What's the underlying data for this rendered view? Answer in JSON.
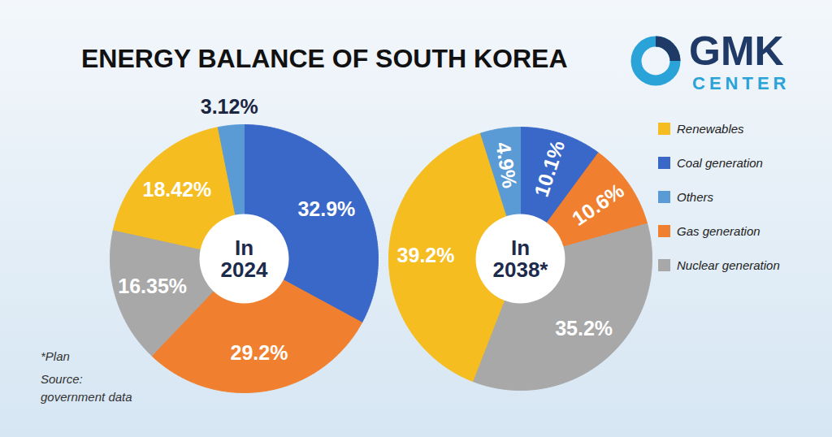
{
  "title": "ENERGY BALANCE OF SOUTH KOREA",
  "logo": [
    "GMK",
    "CENTER"
  ],
  "note": "*Plan",
  "source": [
    "Source:",
    "government data"
  ],
  "legend": "right",
  "legend_labels": [
    "Renewables",
    "Coal generation",
    "Others",
    "Gas generation",
    "Nuclear generation"
  ],
  "chart_data": [
    {
      "type": "pie",
      "title": "In 2024",
      "categories": [
        "Coal generation",
        "Gas generation",
        "Nuclear generation",
        "Renewables",
        "Others"
      ],
      "values": [
        32.9,
        29.2,
        16.35,
        18.42,
        3.12
      ],
      "value_labels": [
        "32.9%",
        "29.2%",
        "16.35%",
        "18.42%",
        "3.12%"
      ],
      "colors": [
        "#3a68c8",
        "#f08030",
        "#a8a8a8",
        "#f5bd1f",
        "#5b9bd5"
      ],
      "data_labels": true
    },
    {
      "type": "pie",
      "title": "In 2038*",
      "categories": [
        "Coal generation",
        "Gas generation",
        "Nuclear generation",
        "Renewables",
        "Others"
      ],
      "values": [
        10.1,
        10.6,
        35.2,
        39.2,
        4.9
      ],
      "value_labels": [
        "10.1%",
        "10.6%",
        "35.2%",
        "39.2%",
        "4.9%"
      ],
      "colors": [
        "#3a68c8",
        "#f08030",
        "#a8a8a8",
        "#f5bd1f",
        "#5b9bd5"
      ],
      "data_labels": true
    }
  ]
}
